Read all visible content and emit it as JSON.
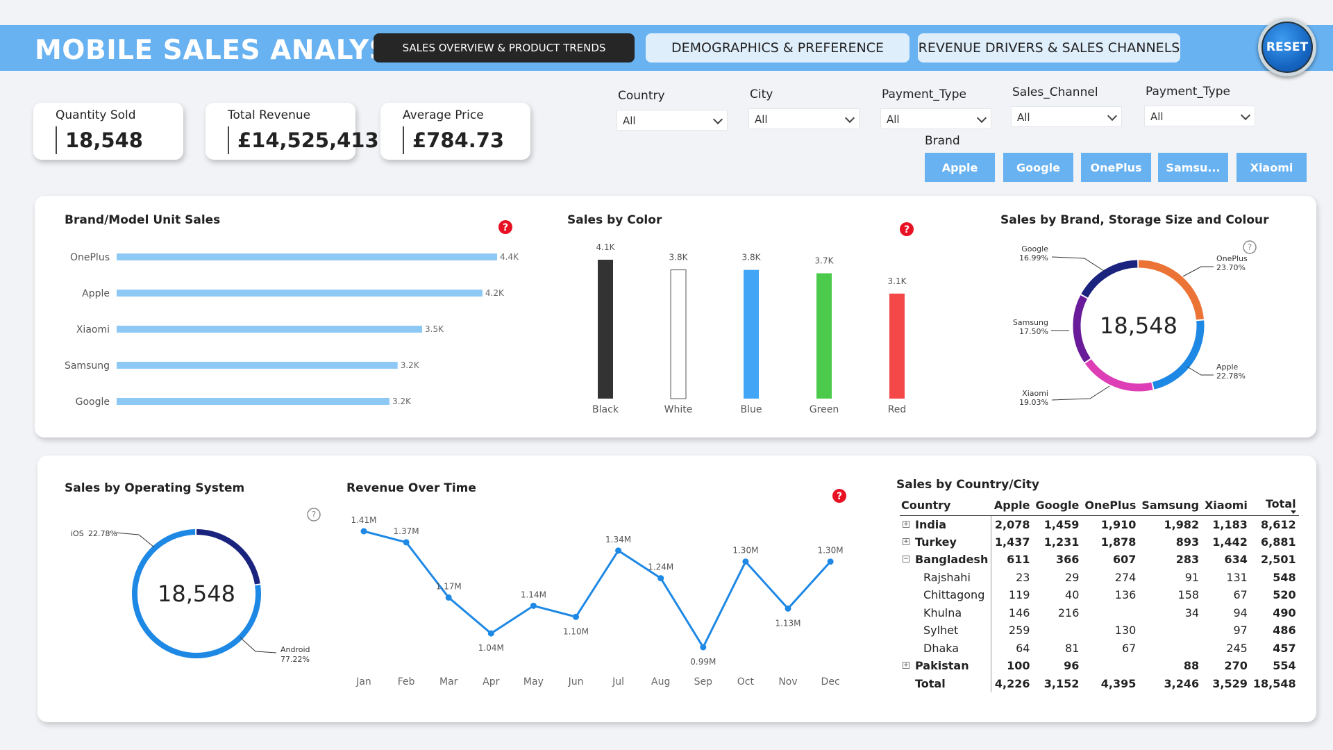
{
  "header": {
    "title": "MOBILE SALES ANALYSIS",
    "tabs": [
      {
        "label": "SALES OVERVIEW & PRODUCT TRENDS"
      },
      {
        "label": "DEMOGRAPHICS & PREFERENCE"
      },
      {
        "label": "REVENUE DRIVERS & SALES CHANNELS"
      }
    ],
    "reset_label": "RESET"
  },
  "kpis": {
    "quantity": {
      "label": "Quantity Sold",
      "value": "18,548"
    },
    "revenue": {
      "label": "Total Revenue",
      "value": "£14,525,413"
    },
    "price": {
      "label": "Average Price",
      "value": "£784.73"
    }
  },
  "filters": {
    "country": {
      "label": "Country",
      "value": "All"
    },
    "city": {
      "label": "City",
      "value": "All"
    },
    "payment_type": {
      "label": "Payment_Type",
      "value": "All"
    },
    "sales_channel": {
      "label": "Sales_Channel",
      "value": "All"
    },
    "payment_type_2": {
      "label": "Payment_Type",
      "value": "All"
    },
    "brand": {
      "label": "Brand",
      "options": [
        "Apple",
        "Google",
        "OnePlus",
        "Samsu...",
        "Xiaomi"
      ]
    }
  },
  "colors": {
    "accent": "#68b2f1",
    "bar_light": "#8ec9f5",
    "help_red": "#e81123",
    "donut_blue": "#1e88e5",
    "donut_navy": "#1a237e"
  },
  "chart_data": [
    {
      "id": "brand_model",
      "type": "bar",
      "orientation": "horizontal",
      "title": "Brand/Model Unit Sales",
      "categories": [
        "OnePlus",
        "Apple",
        "Xiaomi",
        "Samsung",
        "Google"
      ],
      "values": [
        4395,
        4226,
        3529,
        3246,
        3152
      ],
      "labels": [
        "4.4K",
        "4.2K",
        "3.5K",
        "3.2K",
        "3.2K"
      ]
    },
    {
      "id": "color",
      "type": "bar",
      "title": "Sales by Color",
      "categories": [
        "Black",
        "White",
        "Blue",
        "Green",
        "Red"
      ],
      "values": [
        4100,
        3800,
        3800,
        3700,
        3100
      ],
      "labels": [
        "4.1K",
        "3.8K",
        "3.8K",
        "3.7K",
        "3.1K"
      ],
      "colors": [
        "#333333",
        "#ffffff",
        "#42a5f5",
        "#4cca4c",
        "#f44848"
      ]
    },
    {
      "id": "brand_donut",
      "type": "pie",
      "title": "Sales by Brand, Storage Size and Colour",
      "center_label": "18,548",
      "slices": [
        {
          "name": "OnePlus",
          "pct": "23.70%",
          "value": 23.7,
          "color": "#ec7336"
        },
        {
          "name": "Apple",
          "pct": "22.78%",
          "value": 22.78,
          "color": "#1e88e5"
        },
        {
          "name": "Xiaomi",
          "pct": "19.03%",
          "value": 19.03,
          "color": "#dd3eb5"
        },
        {
          "name": "Samsung",
          "pct": "17.50%",
          "value": 17.5,
          "color": "#6a1b9a"
        },
        {
          "name": "Google",
          "pct": "16.99%",
          "value": 16.99,
          "color": "#1a237e"
        }
      ]
    },
    {
      "id": "os_donut",
      "type": "pie",
      "title": "Sales by Operating System",
      "center_label": "18,548",
      "slices": [
        {
          "name": "Android",
          "pct": "77.22%",
          "value": 77.22,
          "color": "#1e88e5"
        },
        {
          "name": "iOS",
          "pct": "22.78%",
          "value": 22.78,
          "color": "#1a237e"
        }
      ]
    },
    {
      "id": "revenue_time",
      "type": "line",
      "title": "Revenue Over Time",
      "categories": [
        "Jan",
        "Feb",
        "Mar",
        "Apr",
        "May",
        "Jun",
        "Jul",
        "Aug",
        "Sep",
        "Oct",
        "Nov",
        "Dec"
      ],
      "values": [
        1.41,
        1.37,
        1.17,
        1.04,
        1.14,
        1.1,
        1.34,
        1.24,
        0.99,
        1.3,
        1.13,
        1.3
      ],
      "labels": [
        "1.41M",
        "1.37M",
        "1.17M",
        "1.04M",
        "1.14M",
        "1.10M",
        "1.34M",
        "1.24M",
        "0.99M",
        "1.30M",
        "1.13M",
        "1.30M"
      ],
      "ylim": [
        0.99,
        1.41
      ]
    }
  ],
  "table": {
    "title": "Sales by Country/City",
    "columns": [
      "Country",
      "Apple",
      "Google",
      "OnePlus",
      "Samsung",
      "Xiaomi",
      "Total"
    ],
    "rows": [
      {
        "level": 0,
        "expander": "+",
        "cells": [
          "India",
          "2,078",
          "1,459",
          "1,910",
          "1,982",
          "1,183",
          "8,612"
        ]
      },
      {
        "level": 0,
        "expander": "+",
        "cells": [
          "Turkey",
          "1,437",
          "1,231",
          "1,878",
          "893",
          "1,442",
          "6,881"
        ]
      },
      {
        "level": 0,
        "expander": "−",
        "cells": [
          "Bangladesh",
          "611",
          "366",
          "607",
          "283",
          "634",
          "2,501"
        ]
      },
      {
        "level": 1,
        "cells": [
          "Rajshahi",
          "23",
          "29",
          "274",
          "91",
          "131",
          "548"
        ]
      },
      {
        "level": 1,
        "cells": [
          "Chittagong",
          "119",
          "40",
          "136",
          "158",
          "67",
          "520"
        ]
      },
      {
        "level": 1,
        "cells": [
          "Khulna",
          "146",
          "216",
          "",
          "34",
          "94",
          "490"
        ]
      },
      {
        "level": 1,
        "cells": [
          "Sylhet",
          "259",
          "",
          "130",
          "",
          "97",
          "486"
        ]
      },
      {
        "level": 1,
        "cells": [
          "Dhaka",
          "64",
          "81",
          "67",
          "",
          "245",
          "457"
        ]
      },
      {
        "level": 0,
        "expander": "+",
        "cells": [
          "Pakistan",
          "100",
          "96",
          "",
          "88",
          "270",
          "554"
        ]
      }
    ],
    "total_row": [
      "Total",
      "4,226",
      "3,152",
      "4,395",
      "3,246",
      "3,529",
      "18,548"
    ]
  }
}
